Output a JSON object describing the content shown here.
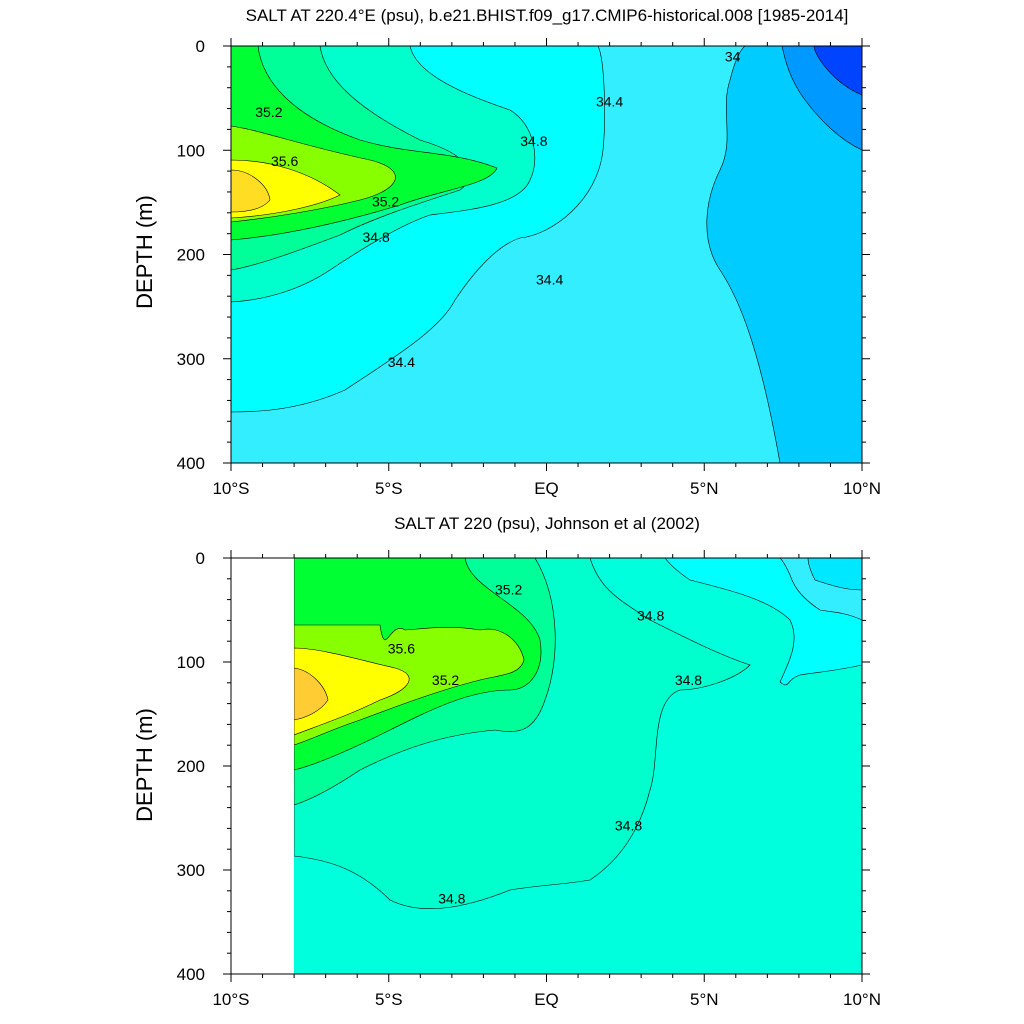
{
  "chart_data": [
    {
      "type": "contour",
      "title": "SALT AT 220.4°E (psu), b.e21.BHIST.f09_g17.CMIP6-historical.008 [1985-2014]",
      "ylabel": "DEPTH (m)",
      "x_ticks": [
        {
          "value": -10,
          "label": "10°S"
        },
        {
          "value": -5,
          "label": "5°S"
        },
        {
          "value": 0,
          "label": "EQ"
        },
        {
          "value": 5,
          "label": "5°N"
        },
        {
          "value": 10,
          "label": "10°N"
        }
      ],
      "y_ticks": [
        0,
        100,
        200,
        300,
        400
      ],
      "xlim": [
        -10,
        10
      ],
      "ylim": [
        0,
        400
      ],
      "y_inverted": true,
      "contour_labels": [
        {
          "text": "35.2",
          "lat": -8.8,
          "depth": 68
        },
        {
          "text": "35.6",
          "lat": -8.3,
          "depth": 115
        },
        {
          "text": "35.2",
          "lat": -5.1,
          "depth": 154
        },
        {
          "text": "34.8",
          "lat": -5.4,
          "depth": 188
        },
        {
          "text": "34.8",
          "lat": -0.4,
          "depth": 96
        },
        {
          "text": "34.4",
          "lat": 2.0,
          "depth": 58
        },
        {
          "text": "34",
          "lat": 5.9,
          "depth": 15
        },
        {
          "text": "34.4",
          "lat": 0.1,
          "depth": 229
        },
        {
          "text": "34.4",
          "lat": -4.6,
          "depth": 308
        }
      ],
      "colors": {
        "c3375": "#0044ff",
        "c34": "#0099ff",
        "c3425": "#00ccff",
        "c344": "#33eeff",
        "c346": "#00ffff",
        "c348": "#00ffcc",
        "c350": "#00ff99",
        "c352": "#00ff33",
        "c354": "#88ff00",
        "c356": "#ffff00",
        "c358": "#ffdd22"
      }
    },
    {
      "type": "contour",
      "title": "SALT AT 220 (psu), Johnson et al (2002)",
      "ylabel": "DEPTH (m)",
      "x_ticks": [
        {
          "value": -10,
          "label": "10°S"
        },
        {
          "value": -5,
          "label": "5°S"
        },
        {
          "value": 0,
          "label": "EQ"
        },
        {
          "value": 5,
          "label": "5°N"
        },
        {
          "value": 10,
          "label": "10°N"
        }
      ],
      "y_ticks": [
        0,
        100,
        200,
        300,
        400
      ],
      "xlim": [
        -10,
        10
      ],
      "ylim": [
        0,
        400
      ],
      "y_inverted": true,
      "data_lat_range": [
        -8,
        10
      ],
      "contour_labels": [
        {
          "text": "35.2",
          "lat": -1.2,
          "depth": 35
        },
        {
          "text": "35.6",
          "lat": -4.6,
          "depth": 92
        },
        {
          "text": "35.2",
          "lat": -3.2,
          "depth": 122
        },
        {
          "text": "34.8",
          "lat": 3.3,
          "depth": 60
        },
        {
          "text": "34.8",
          "lat": 4.5,
          "depth": 122
        },
        {
          "text": "34.8",
          "lat": 2.6,
          "depth": 262
        },
        {
          "text": "34.8",
          "lat": -3.0,
          "depth": 332
        }
      ],
      "colors": {
        "c344": "#33eeff",
        "c345": "#00e8ff",
        "c346": "#00ffff",
        "c347": "#00ffdd",
        "c348": "#00ffcc",
        "c350": "#00ff99",
        "c352": "#00ff33",
        "c354": "#88ff00",
        "c356": "#ffff00",
        "c358": "#ffcc33"
      }
    }
  ]
}
